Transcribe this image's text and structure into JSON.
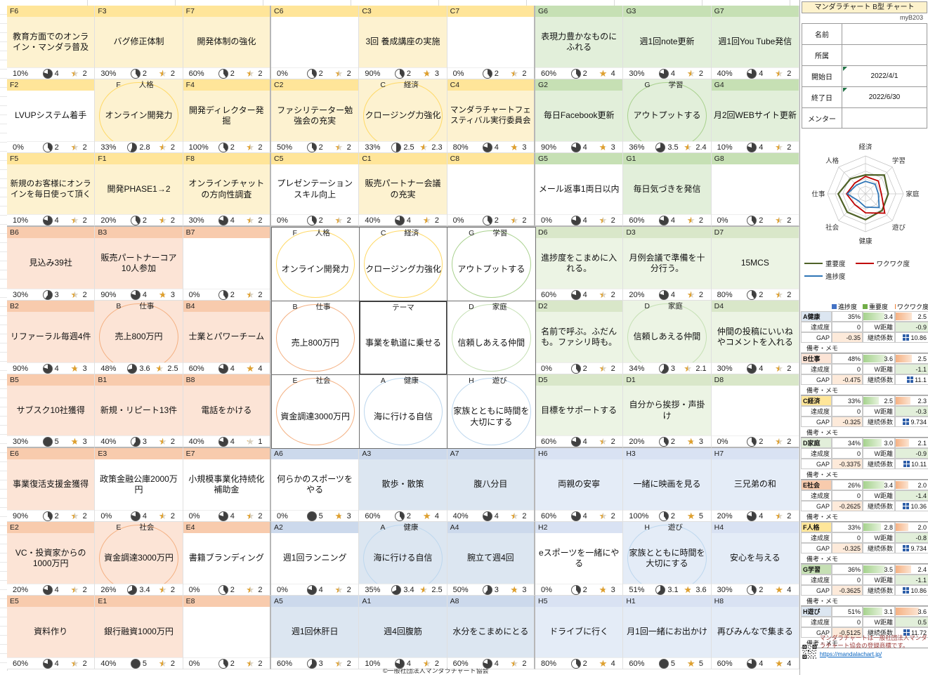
{
  "app": {
    "title": "マンダラチャート B型 チャート",
    "subtitle": "myB203",
    "footer": "©一般社団法人マンダラチャート協会"
  },
  "profile": {
    "fields": [
      {
        "label": "名前",
        "value": ""
      },
      {
        "label": "所属",
        "value": ""
      },
      {
        "label": "開始日",
        "value": "2022/4/1",
        "flag": true
      },
      {
        "label": "終了日",
        "value": "2022/6/30",
        "flag": true
      },
      {
        "label": "メンター",
        "value": ""
      }
    ]
  },
  "grid": {
    "blocks": {
      "F": {
        "name": "人格",
        "header": "#ffe599",
        "body": "#fdf2d0",
        "ellipse": "#ffd966"
      },
      "C": {
        "name": "経済",
        "header": "#ffe599",
        "body": "#fdf2d0",
        "ellipse": "#ffd966"
      },
      "G": {
        "name": "学習",
        "header": "#c6e0b4",
        "body": "#e2efda",
        "ellipse": "#a9d18e"
      },
      "B": {
        "name": "仕事",
        "header": "#f8cbad",
        "body": "#fce4d6",
        "ellipse": "#f4b183"
      },
      "D": {
        "name": "家庭",
        "header": "#d9e7c9",
        "body": "#ecf4e4",
        "ellipse": "#c5e0b4"
      },
      "E": {
        "name": "社会",
        "header": "#f8cbad",
        "body": "#fce4d6",
        "ellipse": "#f4b183"
      },
      "A": {
        "name": "健康",
        "header": "#ccd9ec",
        "body": "#dce6f1",
        "ellipse": "#bdd7ee"
      },
      "H": {
        "name": "遊び",
        "header": "#d9e2f3",
        "body": "#e4ecf7",
        "ellipse": "#bdd7ee"
      }
    },
    "theme_label": "テーマ",
    "cells": [
      {
        "code": "F6",
        "block": "F",
        "text": "教育方面でのオンライン・マンダラ普及",
        "prog": "10%",
        "imp": 4,
        "exc": 2
      },
      {
        "code": "F3",
        "block": "F",
        "text": "バグ修正体制",
        "prog": "30%",
        "imp": 2,
        "exc": 2
      },
      {
        "code": "F7",
        "block": "F",
        "text": "開発体制の強化",
        "prog": "60%",
        "imp": 2,
        "exc": 2
      },
      {
        "code": "C6",
        "block": "C",
        "text": "",
        "white": true,
        "prog": "0%",
        "imp": 2,
        "exc": 2
      },
      {
        "code": "C3",
        "block": "C",
        "text": "3回 養成講座の実施",
        "prog": "90%",
        "imp": 2,
        "exc": 3
      },
      {
        "code": "C7",
        "block": "C",
        "text": "",
        "white": true,
        "prog": "0%",
        "imp": 2,
        "exc": 2
      },
      {
        "code": "G6",
        "block": "G",
        "text": "表現力豊かなものにふれる",
        "prog": "60%",
        "imp": 2,
        "exc": 4
      },
      {
        "code": "G3",
        "block": "G",
        "text": "週1回note更新",
        "prog": "30%",
        "imp": 4,
        "exc": 2
      },
      {
        "code": "G7",
        "block": "G",
        "text": "週1回You Tube発信",
        "prog": "40%",
        "imp": 4,
        "exc": 2
      },
      {
        "code": "F2",
        "block": "F",
        "text": "LVUPシステム着手",
        "white": true,
        "prog": "0%",
        "imp": 2,
        "exc": 2
      },
      {
        "code": "F",
        "type": "center",
        "block": "F",
        "cat": "人格",
        "text": "オンライン開発力",
        "prog": "33%",
        "imp": 2.8,
        "exc": 2
      },
      {
        "code": "F4",
        "block": "F",
        "text": "開発ディレクター発掘",
        "prog": "100%",
        "imp": 2,
        "exc": 2
      },
      {
        "code": "C2",
        "block": "C",
        "text": "ファシリテーター勉強会の充実",
        "prog": "50%",
        "imp": 2,
        "exc": 2
      },
      {
        "code": "C",
        "type": "center",
        "block": "C",
        "cat": "経済",
        "text": "クロージング力強化",
        "prog": "33%",
        "imp": 2.5,
        "exc": 2.3
      },
      {
        "code": "C4",
        "block": "C",
        "text": "マンダラチャートフェスティバル実行委員会",
        "prog": "80%",
        "imp": 4,
        "exc": 3
      },
      {
        "code": "G2",
        "block": "G",
        "text": "毎日Facebook更新",
        "prog": "90%",
        "imp": 4,
        "exc": 3
      },
      {
        "code": "G",
        "type": "center",
        "block": "G",
        "cat": "学習",
        "text": "アウトプットする",
        "prog": "36%",
        "imp": 3.5,
        "exc": 2.4
      },
      {
        "code": "G4",
        "block": "G",
        "text": "月2回WEBサイト更新",
        "prog": "10%",
        "imp": 4,
        "exc": 2
      },
      {
        "code": "F5",
        "block": "F",
        "text": "新規のお客様にオンラインを毎日使って頂く",
        "prog": "10%",
        "imp": 4,
        "exc": 2
      },
      {
        "code": "F1",
        "block": "F",
        "text": "開発PHASE1→2",
        "prog": "20%",
        "imp": 2,
        "exc": 2
      },
      {
        "code": "F8",
        "block": "F",
        "text": "オンラインチャットの方向性調査",
        "prog": "30%",
        "imp": 4,
        "exc": 2
      },
      {
        "code": "C5",
        "block": "C",
        "text": "プレゼンテーションスキル向上",
        "white": true,
        "prog": "0%",
        "imp": 2,
        "exc": 2
      },
      {
        "code": "C1",
        "block": "C",
        "text": "販売パートナー会議の充実",
        "prog": "40%",
        "imp": 4,
        "exc": 2
      },
      {
        "code": "C8",
        "block": "C",
        "text": "",
        "white": true,
        "prog": "0%",
        "imp": 2,
        "exc": 2
      },
      {
        "code": "G5",
        "block": "G",
        "text": "メール返事1両日以内",
        "white": true,
        "prog": "0%",
        "imp": 4,
        "exc": 2
      },
      {
        "code": "G1",
        "block": "G",
        "text": "毎日気づきを発信",
        "prog": "60%",
        "imp": 4,
        "exc": 2
      },
      {
        "code": "G8",
        "block": "G",
        "text": "",
        "white": true,
        "prog": "0%",
        "imp": 2,
        "exc": 2
      },
      {
        "code": "B6",
        "block": "B",
        "text": "見込み39社",
        "prog": "30%",
        "imp": 3,
        "exc": 2
      },
      {
        "code": "B3",
        "block": "B",
        "text": "販売パートナーコア10人参加",
        "prog": "90%",
        "imp": 4,
        "exc": 3
      },
      {
        "code": "B7",
        "block": "B",
        "text": "",
        "white": true,
        "prog": "0%",
        "imp": 2,
        "exc": 2
      },
      {
        "code": "F",
        "type": "hub",
        "block": "F",
        "cat": "人格",
        "text": "オンライン開発力"
      },
      {
        "code": "C",
        "type": "hub",
        "block": "C",
        "cat": "経済",
        "text": "クロージング力強化"
      },
      {
        "code": "G",
        "type": "hub",
        "block": "G",
        "cat": "学習",
        "text": "アウトプットする"
      },
      {
        "code": "D6",
        "block": "D",
        "text": "進捗度をこまめに入れる。",
        "prog": "60%",
        "imp": 4,
        "exc": 2
      },
      {
        "code": "D3",
        "block": "D",
        "text": "月例会議で準備を十分行う。",
        "prog": "20%",
        "imp": 4,
        "exc": 2
      },
      {
        "code": "D7",
        "block": "D",
        "text": "15MCS",
        "prog": "80%",
        "imp": 2,
        "exc": 2
      },
      {
        "code": "B2",
        "block": "B",
        "text": "リファーラル毎週4件",
        "prog": "90%",
        "imp": 4,
        "exc": 3
      },
      {
        "code": "B",
        "type": "center",
        "block": "B",
        "cat": "仕事",
        "text": "売上800万円",
        "prog": "48%",
        "imp": 3.6,
        "exc": 2.5
      },
      {
        "code": "B4",
        "block": "B",
        "text": "士業とパワーチーム",
        "prog": "60%",
        "imp": 4,
        "exc": 4
      },
      {
        "code": "B",
        "type": "hub",
        "block": "B",
        "cat": "仕事",
        "text": "売上800万円"
      },
      {
        "code": "テーマ",
        "type": "theme",
        "text": "事業を軌道に乗せる"
      },
      {
        "code": "D",
        "type": "hub",
        "block": "D",
        "cat": "家庭",
        "text": "信頼しあえる仲間"
      },
      {
        "code": "D2",
        "block": "D",
        "text": "名前で呼ぶ。ふだんも。ファシリ時も。",
        "prog": "0%",
        "imp": 2,
        "exc": 2
      },
      {
        "code": "D",
        "type": "center",
        "block": "D",
        "cat": "家庭",
        "text": "信頼しあえる仲間",
        "prog": "34%",
        "imp": 3,
        "exc": 2.1
      },
      {
        "code": "D4",
        "block": "D",
        "text": "仲間の投稿にいいねやコメントを入れる",
        "prog": "30%",
        "imp": 4,
        "exc": 2
      },
      {
        "code": "B5",
        "block": "B",
        "text": "サブスク10社獲得",
        "prog": "30%",
        "imp": 5,
        "exc": 3
      },
      {
        "code": "B1",
        "block": "B",
        "text": "新規・リピート13件",
        "prog": "40%",
        "imp": 3,
        "exc": 2
      },
      {
        "code": "B8",
        "block": "B",
        "text": "電話をかける",
        "prog": "40%",
        "imp": 4,
        "exc": 1
      },
      {
        "code": "E",
        "type": "hub",
        "block": "E",
        "cat": "社会",
        "text": "資金調達3000万円"
      },
      {
        "code": "A",
        "type": "hub",
        "block": "A",
        "cat": "健康",
        "text": "海に行ける自信"
      },
      {
        "code": "H",
        "type": "hub",
        "block": "H",
        "cat": "遊び",
        "text": "家族とともに時間を大切にする"
      },
      {
        "code": "D5",
        "block": "D",
        "text": "目標をサポートする",
        "prog": "60%",
        "imp": 4,
        "exc": 2
      },
      {
        "code": "D1",
        "block": "D",
        "text": "自分から挨拶・声掛け",
        "prog": "20%",
        "imp": 2,
        "exc": 3
      },
      {
        "code": "D8",
        "block": "D",
        "text": "",
        "white": true,
        "prog": "0%",
        "imp": 2,
        "exc": 2
      },
      {
        "code": "E6",
        "block": "E",
        "text": "事業復活支援金獲得",
        "prog": "90%",
        "imp": 2,
        "exc": 2
      },
      {
        "code": "E3",
        "block": "E",
        "text": "政策金融公庫2000万円",
        "white": true,
        "prog": "0%",
        "imp": 4,
        "exc": 2
      },
      {
        "code": "E7",
        "block": "E",
        "text": "小規模事業化持続化補助金",
        "white": true,
        "prog": "0%",
        "imp": 4,
        "exc": 2
      },
      {
        "code": "A6",
        "block": "A",
        "text": "何らかのスポーツをやる",
        "white": true,
        "prog": "0%",
        "imp": 5,
        "exc": 3
      },
      {
        "code": "A3",
        "block": "A",
        "text": "散歩・散策",
        "prog": "60%",
        "imp": 2,
        "exc": 4
      },
      {
        "code": "A7",
        "block": "A",
        "text": "腹八分目",
        "prog": "40%",
        "imp": 4,
        "exc": 2
      },
      {
        "code": "H6",
        "block": "H",
        "text": "両親の安寧",
        "prog": "60%",
        "imp": 4,
        "exc": 2
      },
      {
        "code": "H3",
        "block": "H",
        "text": "一緒に映画を見る",
        "prog": "100%",
        "imp": 2,
        "exc": 5
      },
      {
        "code": "H7",
        "block": "H",
        "text": "三兄弟の和",
        "prog": "20%",
        "imp": 4,
        "exc": 2
      },
      {
        "code": "E2",
        "block": "E",
        "text": "VC・投資家からの1000万円",
        "prog": "20%",
        "imp": 4,
        "exc": 2
      },
      {
        "code": "E",
        "type": "center",
        "block": "E",
        "cat": "社会",
        "text": "資金調達3000万円",
        "prog": "26%",
        "imp": 3.4,
        "exc": 2
      },
      {
        "code": "E4",
        "block": "E",
        "text": "書籍ブランディング",
        "white": true,
        "prog": "0%",
        "imp": 2,
        "exc": 2
      },
      {
        "code": "A2",
        "block": "A",
        "text": "週1回ランニング",
        "white": true,
        "prog": "0%",
        "imp": 4,
        "exc": 2
      },
      {
        "code": "A",
        "type": "center",
        "block": "A",
        "cat": "健康",
        "text": "海に行ける自信",
        "prog": "35%",
        "imp": 3.4,
        "exc": 2.5
      },
      {
        "code": "A4",
        "block": "A",
        "text": "腕立て週4回",
        "prog": "50%",
        "imp": 3,
        "exc": 3
      },
      {
        "code": "H2",
        "block": "H",
        "text": "eスポーツを一緒にやる",
        "white": true,
        "prog": "0%",
        "imp": 2,
        "exc": 3
      },
      {
        "code": "H",
        "type": "center",
        "block": "H",
        "cat": "遊び",
        "text": "家族とともに時間を大切にする",
        "prog": "51%",
        "imp": 3.1,
        "exc": 3.6
      },
      {
        "code": "H4",
        "block": "H",
        "text": "安心を与える",
        "prog": "30%",
        "imp": 2,
        "exc": 4
      },
      {
        "code": "E5",
        "block": "E",
        "text": "資料作り",
        "prog": "60%",
        "imp": 4,
        "exc": 2
      },
      {
        "code": "E1",
        "block": "E",
        "text": "銀行融資1000万円",
        "prog": "40%",
        "imp": 5,
        "exc": 2
      },
      {
        "code": "E8",
        "block": "E",
        "text": "",
        "white": true,
        "prog": "0%",
        "imp": 2,
        "exc": 2
      },
      {
        "code": "A5",
        "block": "A",
        "text": "週1回休肝日",
        "prog": "60%",
        "imp": 3,
        "exc": 2
      },
      {
        "code": "A1",
        "block": "A",
        "text": "週4回腹筋",
        "prog": "10%",
        "imp": 4,
        "exc": 2
      },
      {
        "code": "A8",
        "block": "A",
        "text": "水分をこまめにとる",
        "prog": "60%",
        "imp": 4,
        "exc": 2
      },
      {
        "code": "H5",
        "block": "H",
        "text": "ドライブに行く",
        "prog": "80%",
        "imp": 2,
        "exc": 4
      },
      {
        "code": "H1",
        "block": "H",
        "text": "月1回一緒にお出かけ",
        "prog": "60%",
        "imp": 5,
        "exc": 5
      },
      {
        "code": "H8",
        "block": "H",
        "text": "再びみんなで集まる",
        "prog": "60%",
        "imp": 4,
        "exc": 4
      }
    ]
  },
  "chart_data": {
    "type": "radar",
    "axes": [
      "経済",
      "学習",
      "家庭",
      "遊び",
      "健康",
      "社会",
      "仕事",
      "人格"
    ],
    "max": 5,
    "series": [
      {
        "name": "重要度",
        "color": "#4f6228",
        "values": [
          2.5,
          3.5,
          3.0,
          3.1,
          3.4,
          3.4,
          3.6,
          2.8
        ]
      },
      {
        "name": "ワクワク度",
        "color": "#c00000",
        "values": [
          2.3,
          2.4,
          2.1,
          3.6,
          2.5,
          2.0,
          2.5,
          2.0
        ]
      },
      {
        "name": "進捗度",
        "color": "#2e75b6",
        "values": [
          1.65,
          1.8,
          1.7,
          2.55,
          1.75,
          1.3,
          2.4,
          1.65
        ]
      }
    ],
    "legend_rows": [
      [
        "重要度",
        "ワクワク度"
      ],
      [
        "進捗度"
      ]
    ],
    "grid_rings": 5,
    "legend_position": "below"
  },
  "stats": {
    "headers": [
      {
        "label": "進捗度",
        "color": "#4472c4"
      },
      {
        "label": "重要度",
        "color": "#70ad47"
      },
      {
        "label": "ワクワク度",
        "color": "#ed7d31"
      }
    ],
    "row_labels": {
      "achieve": "達成度",
      "wdist": "W距離",
      "gap": "GAP",
      "coeff": "継続係数",
      "memo": "備考・メモ"
    },
    "sections": [
      {
        "name": "A健康",
        "color": "#dce6f1",
        "prog": "35%",
        "imp": "3.4",
        "exc": "2.5",
        "achieve": "0",
        "wdist": "-0.9",
        "gap": "-0.35",
        "coeff": "10.86"
      },
      {
        "name": "B仕事",
        "color": "#fce4d6",
        "prog": "48%",
        "imp": "3.6",
        "exc": "2.5",
        "achieve": "0",
        "wdist": "-1.1",
        "gap": "-0.475",
        "coeff": "11.1"
      },
      {
        "name": "C経済",
        "color": "#ffe699",
        "prog": "33%",
        "imp": "2.5",
        "exc": "2.3",
        "achieve": "0",
        "wdist": "-0.3",
        "gap": "-0.325",
        "coeff": "9.734"
      },
      {
        "name": "D家庭",
        "color": "#e2efda",
        "prog": "34%",
        "imp": "3.0",
        "exc": "2.1",
        "achieve": "0",
        "wdist": "-0.9",
        "gap": "-0.3375",
        "coeff": "10.11"
      },
      {
        "name": "E社会",
        "color": "#f8cbad",
        "prog": "26%",
        "imp": "3.4",
        "exc": "2.0",
        "achieve": "0",
        "wdist": "-1.4",
        "gap": "-0.2625",
        "coeff": "10.36"
      },
      {
        "name": "F人格",
        "color": "#ffe699",
        "prog": "33%",
        "imp": "2.8",
        "exc": "2.0",
        "achieve": "0",
        "wdist": "-0.8",
        "gap": "-0.325",
        "coeff": "9.734"
      },
      {
        "name": "G学習",
        "color": "#c6e0b4",
        "prog": "36%",
        "imp": "3.5",
        "exc": "2.4",
        "achieve": "0",
        "wdist": "-1.1",
        "gap": "-0.3625",
        "coeff": "10.86"
      },
      {
        "name": "H遊び",
        "color": "#dce6f1",
        "prog": "51%",
        "imp": "3.1",
        "exc": "3.6",
        "achieve": "0",
        "wdist": "0.5",
        "gap": "-0.5125",
        "coeff": "11.72"
      }
    ]
  },
  "qr_note": {
    "text": "マンダラチャートは一般社団法人マンダラチャート協会の登録商標です。",
    "link": "https://mandalachart.jp/"
  }
}
